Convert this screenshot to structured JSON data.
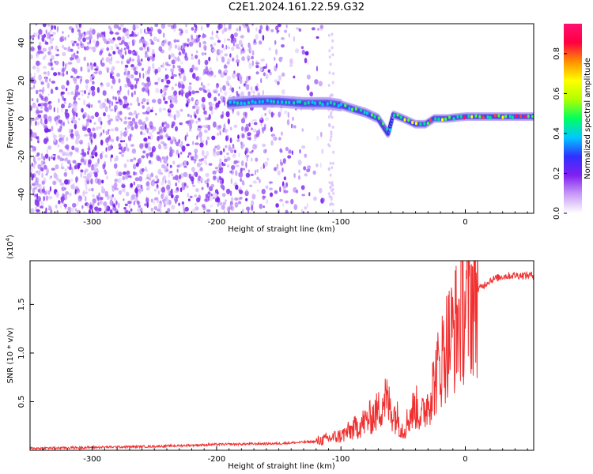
{
  "title": "C2E1.2024.161.22.59.G32",
  "colors": {
    "snr_line": "#f03030",
    "signal_core": "#2020e0",
    "noise": "#8a3cf0",
    "colorbar": [
      "#ffffff",
      "#c99cf7",
      "#8020f0",
      "#3030ff",
      "#00c8ff",
      "#00ff60",
      "#b0ff00",
      "#ffff00",
      "#ff9000",
      "#ff0040",
      "#ff1070"
    ]
  },
  "chart_data": [
    {
      "type": "heatmap",
      "title": "C2E1.2024.161.22.59.G32",
      "xlabel": "Height of straight line (km)",
      "ylabel": "Frequency (Hz)",
      "xlim": [
        -350,
        55
      ],
      "ylim": [
        -50,
        50
      ],
      "x_ticks": [
        -300,
        -200,
        -100,
        0
      ],
      "x_tick_labels": [
        "-300",
        "-200",
        "-100",
        "0"
      ],
      "y_ticks": [
        -40,
        -20,
        0,
        20,
        40
      ],
      "y_tick_labels": [
        "-40",
        "-20",
        "0",
        "20",
        "40"
      ],
      "colorbar": {
        "label": "Normalized spectral amplitude",
        "range": [
          0,
          0.95
        ],
        "ticks": [
          0.0,
          0.2,
          0.4,
          0.6,
          0.8
        ],
        "tick_labels": [
          "0.0",
          "0.2",
          "0.4",
          "0.6",
          "0.8"
        ]
      },
      "signal_track": {
        "x": [
          -190,
          -170,
          -150,
          -130,
          -110,
          -100,
          -90,
          -80,
          -70,
          -65,
          -62,
          -58,
          -50,
          -40,
          -32,
          -25,
          -15,
          0,
          20,
          55
        ],
        "frequency": [
          8,
          9,
          9,
          8,
          8,
          7,
          5,
          3,
          0,
          -5,
          -8,
          2,
          0,
          -3,
          -3,
          0,
          0,
          1,
          1,
          1
        ]
      }
    },
    {
      "type": "line",
      "xlabel": "Height of straight line (km)",
      "ylabel": "SNR (10 * v/v)",
      "y_scale_note": "(x10",
      "y_scale_exp": "4",
      "y_scale_close": ")",
      "xlim": [
        -350,
        55
      ],
      "ylim": [
        0,
        1.95
      ],
      "x_ticks": [
        -300,
        -200,
        -100,
        0
      ],
      "x_tick_labels": [
        "-300",
        "-200",
        "-100",
        "0"
      ],
      "y_ticks": [
        0.5,
        1.0,
        1.5
      ],
      "y_tick_labels": [
        "0.5",
        "1.0",
        "1.5"
      ],
      "series": [
        {
          "x": [
            -350,
            -300,
            -250,
            -200,
            -150,
            -120,
            -110,
            -100,
            -90,
            -80,
            -70,
            -65,
            -60,
            -55,
            -50,
            -45,
            -40,
            -35,
            -30,
            -25,
            -20,
            -15,
            -10,
            -5,
            0,
            10,
            20,
            30,
            40,
            55
          ],
          "y": [
            0.02,
            0.03,
            0.04,
            0.06,
            0.07,
            0.09,
            0.12,
            0.15,
            0.22,
            0.3,
            0.4,
            0.55,
            0.42,
            0.35,
            0.2,
            0.35,
            0.45,
            0.35,
            0.5,
            0.7,
            0.9,
            1.1,
            1.2,
            1.35,
            1.5,
            1.65,
            1.75,
            1.79,
            1.8,
            1.8
          ]
        }
      ]
    }
  ]
}
